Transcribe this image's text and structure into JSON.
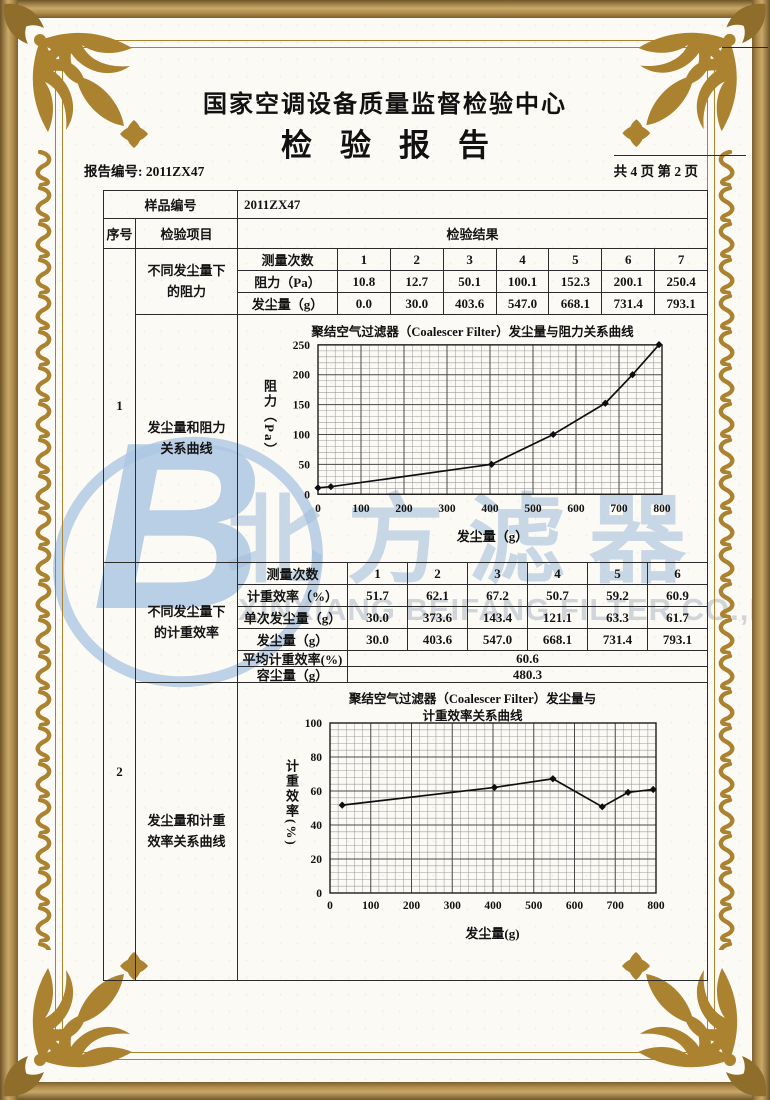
{
  "page": {
    "org_title": "国家空调设备质量监督检验中心",
    "report_title": "检验报告",
    "report_no": "报告编号: 2011ZX47",
    "page_info": "共 4 页 第 2 页"
  },
  "table": {
    "sample_label": "样品编号",
    "sample_value": "2011ZX47",
    "col_seq": "序号",
    "col_item": "检验项目",
    "col_result": "检验结果"
  },
  "sections": [
    {
      "seq": "1",
      "item1": "不同发尘量下的阻力",
      "item2": "发尘量和阻力关系曲线"
    },
    {
      "seq": "2",
      "item1": "不同发尘量下的计重效率",
      "item2": "发尘量和计重效率关系曲线"
    }
  ],
  "t1": {
    "rows": [
      {
        "label": "测量次数",
        "values": [
          "1",
          "2",
          "3",
          "4",
          "5",
          "6",
          "7"
        ]
      },
      {
        "label": "阻力（Pa）",
        "values": [
          "10.8",
          "12.7",
          "50.1",
          "100.1",
          "152.3",
          "200.1",
          "250.4"
        ]
      },
      {
        "label": "发尘量（g）",
        "values": [
          "0.0",
          "30.0",
          "403.6",
          "547.0",
          "668.1",
          "731.4",
          "793.1"
        ]
      }
    ]
  },
  "t2": {
    "rows": [
      {
        "label": "测量次数",
        "values": [
          "1",
          "2",
          "3",
          "4",
          "5",
          "6"
        ]
      },
      {
        "label": "计重效率（%）",
        "values": [
          "51.7",
          "62.1",
          "67.2",
          "50.7",
          "59.2",
          "60.9"
        ]
      },
      {
        "label": "单次发尘量（g）",
        "values": [
          "30.0",
          "373.6",
          "143.4",
          "121.1",
          "63.3",
          "61.7"
        ]
      },
      {
        "label": "发尘量（g）",
        "values": [
          "30.0",
          "403.6",
          "547.0",
          "668.1",
          "731.4",
          "793.1"
        ]
      },
      {
        "label": "平均计重效率(%)",
        "span": "60.6"
      },
      {
        "label": "容尘量（g）",
        "span": "480.3"
      }
    ]
  },
  "watermark": {
    "letter": "B",
    "cn": "北方滤器",
    "en": "XINXIANG BEIFANG FILTER CO.,LTD"
  },
  "chart_data": [
    {
      "type": "line",
      "title": "聚结空气过滤器（Coalescer Filter）发尘量与阻力关系曲线",
      "xlabel": "发尘量（g）",
      "ylabel": "阻力（Pa）",
      "x": [
        0,
        30.0,
        403.6,
        547.0,
        668.1,
        731.4,
        793.1
      ],
      "y": [
        10.8,
        12.7,
        50.1,
        100.1,
        152.3,
        200.1,
        250.4
      ],
      "xlim": [
        0,
        800
      ],
      "ylim": [
        0,
        250
      ],
      "xticks": [
        0,
        100,
        200,
        300,
        400,
        500,
        600,
        700,
        800
      ],
      "yticks": [
        0,
        50,
        100,
        150,
        200,
        250
      ],
      "grid": "fine-graph-paper",
      "legend": "none",
      "marker": "diamond"
    },
    {
      "type": "line",
      "title": "聚结空气过滤器（Coalescer Filter）发尘量与计重效率关系曲线",
      "title_lines": [
        "聚结空气过滤器（Coalescer Filter）发尘量与",
        "计重效率关系曲线"
      ],
      "xlabel": "发尘量(g)",
      "ylabel": "计重效率(%)",
      "x": [
        30.0,
        403.6,
        547.0,
        668.1,
        731.4,
        793.1
      ],
      "y": [
        51.7,
        62.1,
        67.2,
        50.7,
        59.2,
        60.9
      ],
      "xlim": [
        0,
        800
      ],
      "ylim": [
        0,
        100
      ],
      "xticks": [
        0,
        100,
        200,
        300,
        400,
        500,
        600,
        700,
        800
      ],
      "yticks": [
        0,
        20,
        40,
        60,
        80,
        100
      ],
      "grid": "fine-graph-paper",
      "legend": "none",
      "marker": "diamond"
    }
  ]
}
